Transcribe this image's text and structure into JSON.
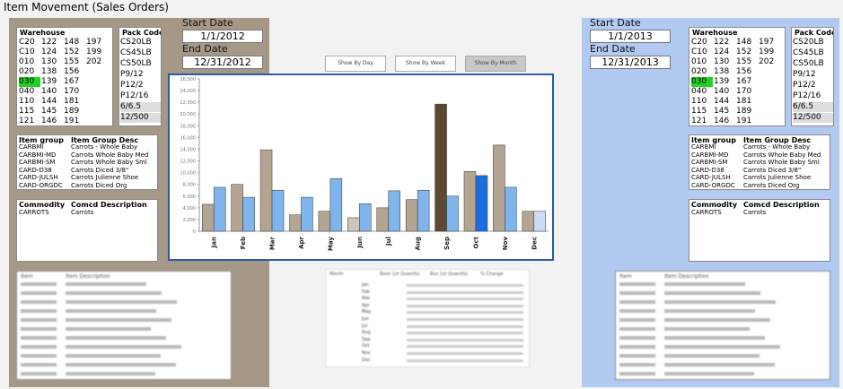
{
  "title": "Item Movement (Sales Orders)",
  "panels": [
    {
      "start_label": "Start Date",
      "start": "1/1/2012",
      "end_label": "End Date",
      "end": "12/31/2012"
    },
    {
      "start_label": "Start Date",
      "start": "1/1/2013",
      "end_label": "End Date",
      "end": "12/31/2013"
    }
  ],
  "warehouse": {
    "header": "Warehouse",
    "selected": "030",
    "rows": [
      [
        "C20",
        "122",
        "148",
        "197"
      ],
      [
        "C10",
        "124",
        "152",
        "199"
      ],
      [
        "010",
        "130",
        "155",
        "202"
      ],
      [
        "020",
        "138",
        "156"
      ],
      [
        "030",
        "139",
        "167"
      ],
      [
        "040",
        "140",
        "170"
      ],
      [
        "110",
        "144",
        "181"
      ],
      [
        "115",
        "145",
        "189"
      ],
      [
        "121",
        "146",
        "191"
      ]
    ]
  },
  "pack_code": {
    "header": "Pack Code",
    "items": [
      "CS20LB",
      "CS45LB",
      "CS50LB",
      "P9/12",
      "P12/2",
      "P12/16",
      "6/6.5",
      "12/500"
    ]
  },
  "item_group": {
    "headers": [
      "Item group",
      "Item Group Desc"
    ],
    "rows": [
      [
        "CARBMI",
        "Carrots - Whole Baby"
      ],
      [
        "CARBMI-MD",
        "Carrots Whole Baby Med"
      ],
      [
        "CARBMI-SM",
        "Carrots Whole Baby Sml"
      ],
      [
        "CARD-D38",
        "Carrots Diced 3/8\""
      ],
      [
        "CARD-JULSH",
        "Carrots Julienne Shoe"
      ],
      [
        "CARD-ORGDC",
        "Carrots Diced Org"
      ]
    ]
  },
  "commodity": {
    "headers": [
      "Commodity",
      "Comcd Description"
    ],
    "rows": [
      [
        "CARROTS",
        "Carrots"
      ]
    ]
  },
  "buttons": [
    "Show By Day",
    "Show By Week",
    "Show By Month"
  ],
  "detail_table": {
    "headers": [
      "Item",
      "Item Description"
    ]
  },
  "month_table": {
    "headers": [
      "Month",
      "Base 1st Quantity",
      "Bus 1st Quantity",
      "% Change"
    ]
  },
  "chart_data": {
    "type": "bar",
    "categories": [
      "Jan",
      "Feb",
      "Mar",
      "Apr",
      "May",
      "Jun",
      "Jul",
      "Aug",
      "Sep",
      "Oct",
      "Nov",
      "Dec"
    ],
    "series": [
      {
        "color": "#b3a591",
        "colors": [
          "#b3a591",
          "#b3a591",
          "#b3a591",
          "#b3a591",
          "#b3a591",
          "#cfc6b8",
          "#b3a591",
          "#b3a591",
          "#5c4a30",
          "#b3a591",
          "#b3a591",
          "#b3a591"
        ],
        "values": [
          4600,
          8000,
          13900,
          2800,
          3400,
          2300,
          4000,
          5400,
          21700,
          10200,
          14700,
          3400
        ]
      },
      {
        "color": "#7fb5ec",
        "colors": [
          "#7fb5ec",
          "#7fb5ec",
          "#7fb5ec",
          "#7fb5ec",
          "#7fb5ec",
          "#7fb5ec",
          "#7fb5ec",
          "#7fb5ec",
          "#7fb5ec",
          "#1a6ee0",
          "#7fb5ec",
          "#c9dcf6"
        ],
        "values": [
          7500,
          5800,
          7000,
          5800,
          9000,
          4700,
          6900,
          7000,
          6000,
          9500,
          7500,
          3400
        ]
      }
    ],
    "ylim": [
      0,
      26000
    ],
    "yticks": [
      0,
      {
        "value": 2000,
        "label": "2,000"
      },
      {
        "value": 4000,
        "label": "4,000"
      },
      {
        "value": 6000,
        "label": "6,000"
      },
      {
        "value": 8000,
        "label": "8,000"
      },
      {
        "value": 10000,
        "label": "10,000"
      },
      {
        "value": 12000,
        "label": "12,000"
      },
      {
        "value": 14000,
        "label": "14,000"
      },
      {
        "value": 16000,
        "label": "16,000"
      },
      {
        "value": 18000,
        "label": "18,000"
      },
      {
        "value": 20000,
        "label": "20,000"
      },
      {
        "value": 22000,
        "label": "22,000"
      },
      {
        "value": 24000,
        "label": "24,000"
      },
      {
        "value": 26000,
        "label": "26,000"
      }
    ]
  }
}
